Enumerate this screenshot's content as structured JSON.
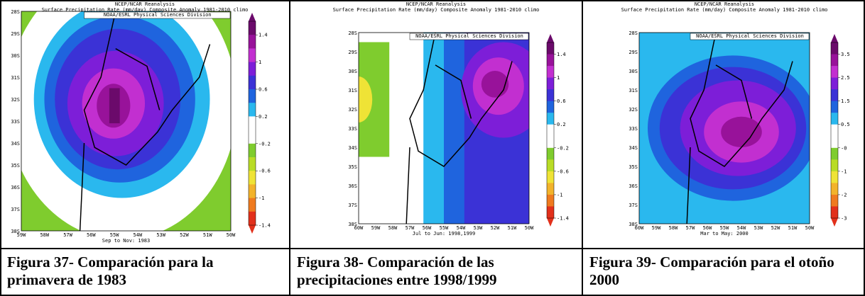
{
  "panels": [
    {
      "source": "NCEP/NCAR Reanalysis",
      "title": "Surface Precipitation Rate (mm/day) Composite Anomaly 1981-2010 climo",
      "credit": "NOAA/ESRL Physical Sciences Division",
      "y_labels": [
        "28S",
        "29S",
        "30S",
        "31S",
        "32S",
        "33S",
        "34S",
        "35S",
        "36S",
        "37S",
        "38S"
      ],
      "x_labels": [
        "59W",
        "58W",
        "57W",
        "56W",
        "55W",
        "54W",
        "53W",
        "52W",
        "51W",
        "50W"
      ],
      "legend": [
        "1.4",
        "1",
        "0.6",
        "0.2",
        "-0.2",
        "-0.6",
        "-1",
        "-1.4"
      ],
      "period": "Sep to Nov: 1983",
      "caption": "Figura 37- Comparación para la primavera de 1983"
    },
    {
      "source": "NCEP/NCAR Reanalysis",
      "title": "Surface Precipitation Rate (mm/day) Composite Anomaly 1981-2010 climo",
      "credit": "NOAA/ESRL Physical Sciences Division",
      "y_labels": [
        "28S",
        "29S",
        "30S",
        "31S",
        "32S",
        "33S",
        "34S",
        "35S",
        "36S",
        "37S",
        "38S"
      ],
      "x_labels": [
        "60W",
        "59W",
        "58W",
        "57W",
        "56W",
        "55W",
        "54W",
        "53W",
        "52W",
        "51W",
        "50W"
      ],
      "legend": [
        "1.4",
        "1",
        "0.6",
        "0.2",
        "-0.2",
        "-0.6",
        "-1",
        "-1.4"
      ],
      "period": "Jul to Jun: 1998,1999",
      "caption": "Figura 38- Comparación de las precipitaciones entre 1998/1999"
    },
    {
      "source": "NCEP/NCAR Reanalysis",
      "title": "Surface Precipitation Rate (mm/day) Composite Anomaly 1981-2010 climo",
      "credit": "NOAA/ESRL Physical Sciences Division",
      "y_labels": [
        "28S",
        "29S",
        "30S",
        "31S",
        "32S",
        "33S",
        "34S",
        "35S",
        "36S",
        "37S",
        "38S"
      ],
      "x_labels": [
        "60W",
        "59W",
        "58W",
        "57W",
        "56W",
        "55W",
        "54W",
        "53W",
        "52W",
        "51W",
        "50W"
      ],
      "legend": [
        "3.5",
        "2.5",
        "1.5",
        "0.5",
        "-0",
        "-1",
        "-2",
        "-3"
      ],
      "period": "Mar to May: 2000",
      "caption": "Figura 39- Comparación para el otoño 2000"
    }
  ]
}
